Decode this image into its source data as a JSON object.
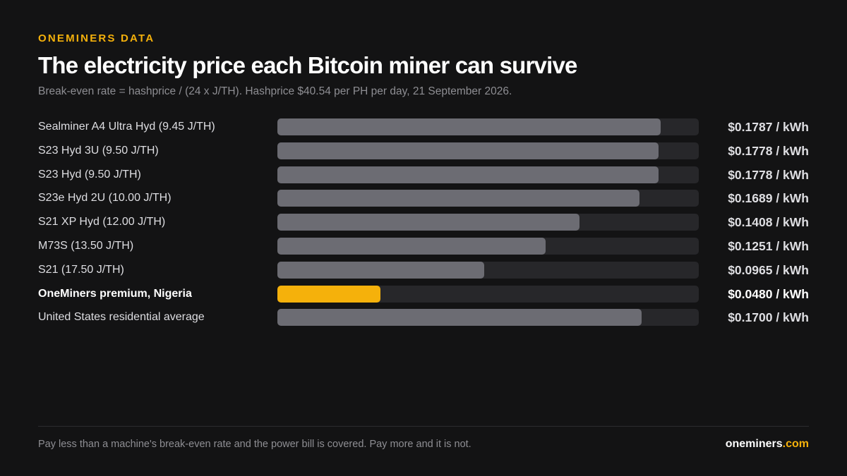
{
  "header": {
    "eyebrow": "ONEMINERS DATA",
    "title": "The electricity price each Bitcoin miner can survive",
    "subtitle": "Break-even rate = hashprice / (24 x J/TH). Hashprice $40.54 per PH per day, 21 September 2026."
  },
  "colors": {
    "background": "#131314",
    "accent": "#f5b10b",
    "bar": "#6c6c73",
    "track": "#27272a"
  },
  "chart_data": {
    "type": "bar",
    "orientation": "horizontal",
    "xlim": [
      0,
      0.1965
    ],
    "grid": false,
    "value_suffix": " / kWh",
    "categories": [
      "Sealminer A4 Ultra Hyd (9.45 J/TH)",
      "S23 Hyd 3U (9.50 J/TH)",
      "S23 Hyd (9.50 J/TH)",
      "S23e Hyd 2U (10.00 J/TH)",
      "S21 XP Hyd (12.00 J/TH)",
      "M73S (13.50 J/TH)",
      "S21 (17.50 J/TH)",
      "OneMiners premium, Nigeria",
      "United States residential average"
    ],
    "values": [
      0.1787,
      0.1778,
      0.1778,
      0.1689,
      0.1408,
      0.1251,
      0.0965,
      0.048,
      0.17
    ],
    "value_labels": [
      "$0.1787 / kWh",
      "$0.1778 / kWh",
      "$0.1778 / kWh",
      "$0.1689 / kWh",
      "$0.1408 / kWh",
      "$0.1251 / kWh",
      "$0.0965 / kWh",
      "$0.0480 / kWh",
      "$0.1700 / kWh"
    ],
    "highlight_index": 7
  },
  "footer": {
    "note": "Pay less than a machine's break-even rate and the power bill is covered. Pay more and it is not.",
    "brand_name": "oneminers",
    "brand_tld": ".com"
  }
}
